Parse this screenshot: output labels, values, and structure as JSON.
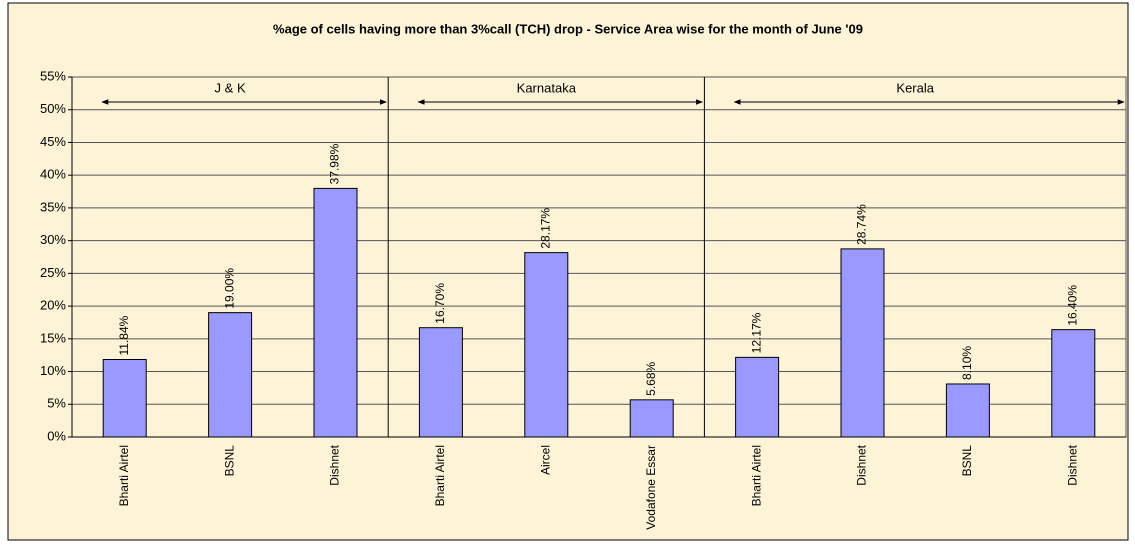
{
  "chart_data": {
    "type": "bar",
    "title": "%age of cells having more than 3%call (TCH) drop - Service Area wise for the month of June '09",
    "groups": [
      {
        "label": "J & K",
        "categories": [
          "Bharti Airtel",
          "BSNL",
          "Dishnet"
        ],
        "values": [
          11.84,
          19.0,
          37.98
        ],
        "value_labels": [
          "11.84%",
          "19.00%",
          "37.98%"
        ]
      },
      {
        "label": "Karnataka",
        "categories": [
          "Bharti Airtel",
          "Aircel",
          "Vodafone Essar"
        ],
        "values": [
          16.7,
          28.17,
          5.68
        ],
        "value_labels": [
          "16.70%",
          "28.17%",
          "5.68%"
        ]
      },
      {
        "label": "Kerala",
        "categories": [
          "Bharti Airtel",
          "Dishnet",
          "BSNL",
          "Dishnet"
        ],
        "values": [
          12.17,
          28.74,
          8.1,
          16.4
        ],
        "value_labels": [
          "12.17%",
          "28.74%",
          "8.10%",
          "16.40%"
        ]
      }
    ],
    "color": "#9999ff",
    "ylim": [
      0,
      55
    ],
    "yticks": [
      {
        "value": 0,
        "label": "0%"
      },
      {
        "value": 5,
        "label": "5%"
      },
      {
        "value": 10,
        "label": "10%"
      },
      {
        "value": 15,
        "label": "15%"
      },
      {
        "value": 20,
        "label": "20%"
      },
      {
        "value": 25,
        "label": "25%"
      },
      {
        "value": 30,
        "label": "30%"
      },
      {
        "value": 35,
        "label": "35%"
      },
      {
        "value": 40,
        "label": "40%"
      },
      {
        "value": 45,
        "label": "45%"
      },
      {
        "value": 50,
        "label": "50%"
      },
      {
        "value": 55,
        "label": "55%"
      }
    ],
    "grid": true
  }
}
